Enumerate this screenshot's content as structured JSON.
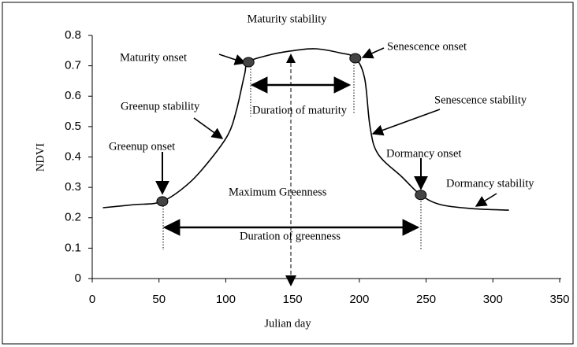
{
  "chart_data": {
    "type": "line",
    "xlabel": "Julian day",
    "ylabel": "NDVI",
    "x": [
      8,
      31,
      52.5,
      73,
      90,
      102,
      108,
      114,
      117,
      132,
      149,
      167,
      185,
      197,
      204,
      208,
      214,
      232,
      246,
      261,
      285,
      312
    ],
    "series": [
      {
        "color": "#000000",
        "values": [
          0.233,
          0.243,
          0.254,
          0.316,
          0.4,
          0.476,
          0.554,
          0.67,
          0.712,
          0.735,
          0.749,
          0.756,
          0.743,
          0.725,
          0.658,
          0.5,
          0.41,
          0.334,
          0.275,
          0.243,
          0.23,
          0.225
        ]
      }
    ],
    "markers": {
      "x": [
        52.5,
        117,
        197,
        246
      ],
      "values": [
        0.254,
        0.712,
        0.725,
        0.275
      ],
      "color": "#444444"
    },
    "xlim": [
      0,
      350
    ],
    "xticks": [
      0,
      50,
      100,
      150,
      200,
      250,
      300,
      350
    ],
    "ylim": [
      0,
      0.8
    ],
    "yticks": [
      0,
      0.1,
      0.2,
      0.3,
      0.4,
      0.5,
      0.6,
      0.7,
      0.8
    ],
    "annotations": [
      "Maturity stability",
      "Maturity onset",
      "Senescence onset",
      "Greenup stability",
      "Duration of maturity",
      "Senescence stability",
      "Greenup onset",
      "Dormancy onset",
      "Maximum Greenness",
      "Dormancy stability",
      "Duration of greenness"
    ]
  }
}
